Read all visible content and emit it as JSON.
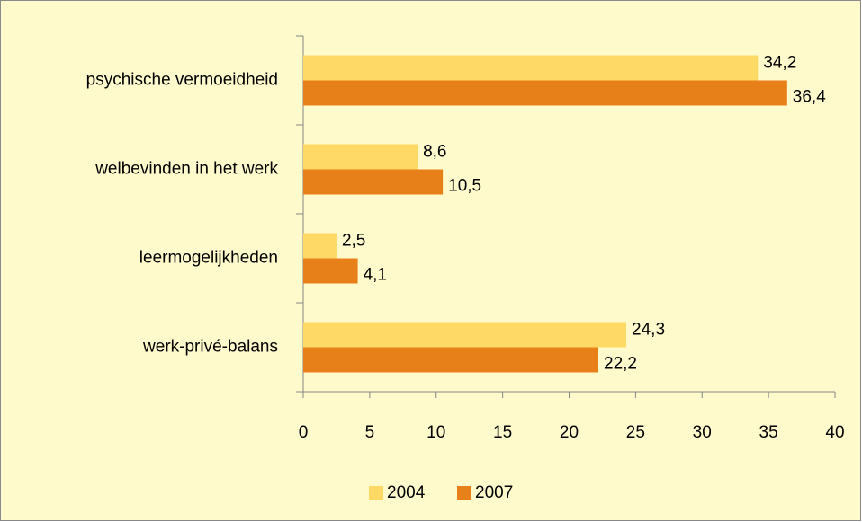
{
  "chart_data": {
    "type": "hbar",
    "categories": [
      "psychische vermoeidheid",
      "welbevinden in het werk",
      "leermogelijkheden",
      "werk-privé-balans"
    ],
    "series": [
      {
        "name": "2004",
        "color": "#ffd966",
        "values": [
          34.2,
          8.6,
          2.5,
          24.3
        ],
        "value_labels": [
          "34,2",
          "8,6",
          "2,5",
          "24,3"
        ]
      },
      {
        "name": "2007",
        "color": "#e8801a",
        "values": [
          36.4,
          10.5,
          4.1,
          22.2
        ],
        "value_labels": [
          "36,4",
          "10,5",
          "4,1",
          "22,2"
        ]
      }
    ],
    "xlim": [
      0,
      40
    ],
    "xticks": [
      0,
      5,
      10,
      15,
      20,
      25,
      30,
      35,
      40
    ],
    "legend": "bottom"
  }
}
